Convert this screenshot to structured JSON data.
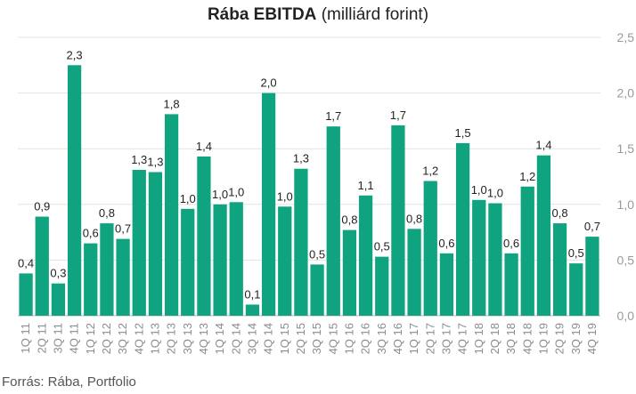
{
  "chart_data": {
    "type": "bar",
    "title": "Rába EBITDA",
    "title_suffix": "(milliárd forint)",
    "xlabel": "",
    "ylabel": "",
    "ylim": [
      0,
      2.5
    ],
    "y_ticks": [
      "0,0",
      "0,5",
      "1,0",
      "1,5",
      "2,0",
      "2,5"
    ],
    "y_axis_position": "right",
    "grid": true,
    "bar_color": "#0fa37f",
    "categories": [
      "1Q 11",
      "2Q 11",
      "3Q 11",
      "4Q 11",
      "1Q 12",
      "2Q 12",
      "3Q 12",
      "4Q 12",
      "1Q 13",
      "2Q 13",
      "3Q 13",
      "4Q 13",
      "1Q 14",
      "2Q 14",
      "3Q 14",
      "4Q 14",
      "1Q 15",
      "2Q 15",
      "3Q 15",
      "4Q 15",
      "1Q 16",
      "2Q 16",
      "3Q 16",
      "4Q 16",
      "1Q 17",
      "2Q 17",
      "3Q 17",
      "4Q 17",
      "1Q 18",
      "2Q 18",
      "3Q 18",
      "4Q 18",
      "1Q 19",
      "2Q 19",
      "3Q 19",
      "4Q 19"
    ],
    "values": [
      0.38,
      0.89,
      0.29,
      2.25,
      0.65,
      0.83,
      0.69,
      1.31,
      1.29,
      1.81,
      0.96,
      1.43,
      1.0,
      1.02,
      0.1,
      2.0,
      0.98,
      1.32,
      0.46,
      1.7,
      0.77,
      1.08,
      0.53,
      1.71,
      0.78,
      1.21,
      0.56,
      1.55,
      1.04,
      1.01,
      0.56,
      1.16,
      1.44,
      0.83,
      0.47,
      0.71
    ],
    "value_labels": [
      "0,4",
      "0,9",
      "0,3",
      "2,3",
      "0,6",
      "0,8",
      "0,7",
      "1,3",
      "1,3",
      "1,8",
      "1,0",
      "1,4",
      "1,0",
      "1,0",
      "0,1",
      "2,0",
      "1,0",
      "1,3",
      "0,5",
      "1,7",
      "0,8",
      "1,1",
      "0,5",
      "1,7",
      "0,8",
      "1,2",
      "0,6",
      "1,5",
      "1,0",
      "1,0",
      "0,6",
      "1,2",
      "1,4",
      "0,8",
      "0,5",
      "0,7"
    ],
    "source": "Forrás: Rába, Portfolio"
  }
}
